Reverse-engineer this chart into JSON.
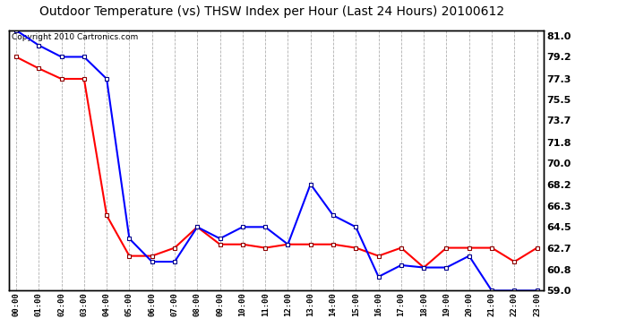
{
  "title": "Outdoor Temperature (vs) THSW Index per Hour (Last 24 Hours) 20100612",
  "copyright_text": "Copyright 2010 Cartronics.com",
  "hours": [
    "00:00",
    "01:00",
    "02:00",
    "03:00",
    "04:00",
    "05:00",
    "06:00",
    "07:00",
    "08:00",
    "09:00",
    "10:00",
    "11:00",
    "12:00",
    "13:00",
    "14:00",
    "15:00",
    "16:00",
    "17:00",
    "18:00",
    "19:00",
    "20:00",
    "21:00",
    "22:00",
    "23:00"
  ],
  "blue_data": [
    81.5,
    80.2,
    79.2,
    79.2,
    77.3,
    63.5,
    61.5,
    61.5,
    64.5,
    63.5,
    64.5,
    64.5,
    63.0,
    68.2,
    65.5,
    64.5,
    60.2,
    61.2,
    61.0,
    61.0,
    62.0,
    59.0,
    59.0,
    59.0
  ],
  "red_data": [
    79.2,
    78.2,
    77.3,
    77.3,
    65.5,
    62.0,
    62.0,
    62.7,
    64.5,
    63.0,
    63.0,
    62.7,
    63.0,
    63.0,
    63.0,
    62.7,
    62.0,
    62.7,
    61.0,
    62.7,
    62.7,
    62.7,
    61.5,
    62.7
  ],
  "blue_color": "#0000ff",
  "red_color": "#ff0000",
  "bg_color": "#ffffff",
  "grid_color": "#b0b0b0",
  "yticks": [
    81.0,
    79.2,
    77.3,
    75.5,
    73.7,
    71.8,
    70.0,
    68.2,
    66.3,
    64.5,
    62.7,
    60.8,
    59.0
  ],
  "ymin": 59.0,
  "ymax": 81.5,
  "marker": "s",
  "marker_size": 3,
  "linewidth": 1.5,
  "title_fontsize": 10,
  "copyright_fontsize": 6.5
}
